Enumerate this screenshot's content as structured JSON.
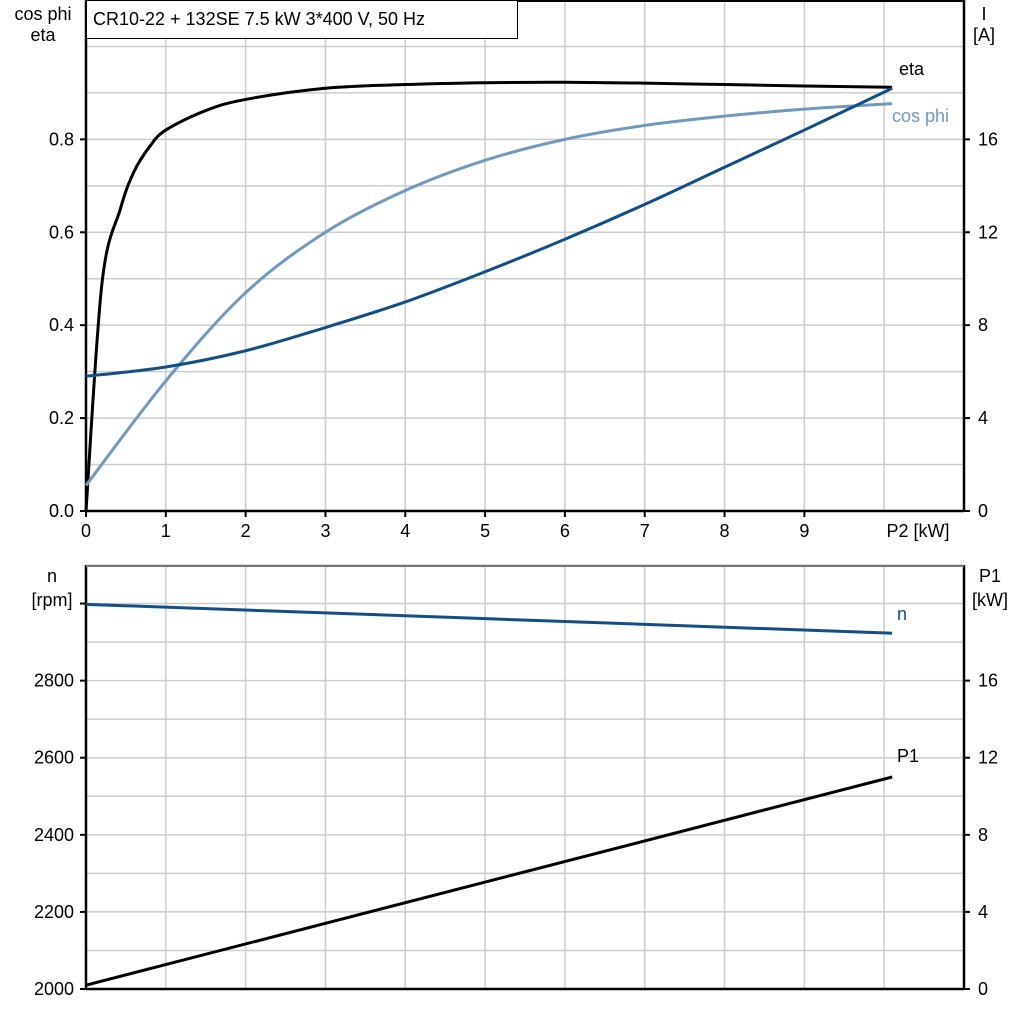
{
  "title": "CR10-22 + 132SE   7.5 kW   3*400 V, 50 Hz",
  "colors": {
    "eta": "#000000",
    "cos_phi": "#7199bd",
    "I": "#134f85",
    "n": "#134f85",
    "P1": "#000000",
    "grid": "#cccccc"
  },
  "chart_data": [
    {
      "type": "line",
      "xlabel": "P2 [kW]",
      "xlim": [
        0,
        11
      ],
      "x_ticks": [
        "0",
        "1",
        "2",
        "3",
        "4",
        "5",
        "6",
        "7",
        "8",
        "9"
      ],
      "ylabel_left": [
        "cos phi",
        "eta"
      ],
      "ylim_left": [
        0,
        1.1
      ],
      "y_ticks_left": [
        "0.0",
        "0.2",
        "0.4",
        "0.6",
        "0.8"
      ],
      "ylabel_right": [
        "I",
        "[A]"
      ],
      "ylim_right": [
        0,
        22
      ],
      "y_ticks_right": [
        "0",
        "4",
        "8",
        "12",
        "16"
      ],
      "grid": true,
      "series": [
        {
          "name": "eta",
          "axis": "left",
          "x": [
            0,
            0.2,
            0.43,
            0.6,
            0.8,
            1,
            1.5,
            2,
            3,
            4,
            5,
            6,
            7,
            8,
            9,
            10.1
          ],
          "y": [
            0,
            0.49,
            0.65,
            0.73,
            0.785,
            0.82,
            0.862,
            0.886,
            0.91,
            0.918,
            0.922,
            0.923,
            0.921,
            0.918,
            0.915,
            0.912
          ]
        },
        {
          "name": "cos phi",
          "axis": "left",
          "x": [
            0,
            1,
            2,
            3,
            4,
            5,
            6,
            7,
            8,
            9,
            10.1
          ],
          "y": [
            0.055,
            0.28,
            0.47,
            0.6,
            0.69,
            0.755,
            0.8,
            0.83,
            0.85,
            0.865,
            0.877
          ]
        },
        {
          "name": "",
          "axis": "right",
          "x": [
            0,
            1,
            2,
            3,
            4,
            5,
            6,
            7,
            8,
            9,
            10.1
          ],
          "y": [
            5.8,
            6.2,
            6.9,
            7.9,
            9.0,
            10.3,
            11.7,
            13.2,
            14.8,
            16.4,
            18.2
          ]
        }
      ]
    },
    {
      "type": "line",
      "xlim": [
        0,
        11
      ],
      "ylabel_left": [
        "n",
        "[rpm]"
      ],
      "ylim_left": [
        2000,
        3100
      ],
      "y_ticks_left": [
        "2000",
        "2200",
        "2400",
        "2600",
        "2800"
      ],
      "ylabel_right": [
        "P1",
        "[kW]"
      ],
      "ylim_right": [
        0,
        22
      ],
      "y_ticks_right": [
        "0",
        "4",
        "8",
        "12",
        "16"
      ],
      "grid": true,
      "series": [
        {
          "name": "n",
          "axis": "left",
          "x": [
            0,
            10.1
          ],
          "y": [
            2998,
            2923
          ]
        },
        {
          "name": "P1",
          "axis": "right",
          "x": [
            0,
            10.1
          ],
          "y": [
            0.2,
            11.0
          ]
        }
      ]
    }
  ]
}
